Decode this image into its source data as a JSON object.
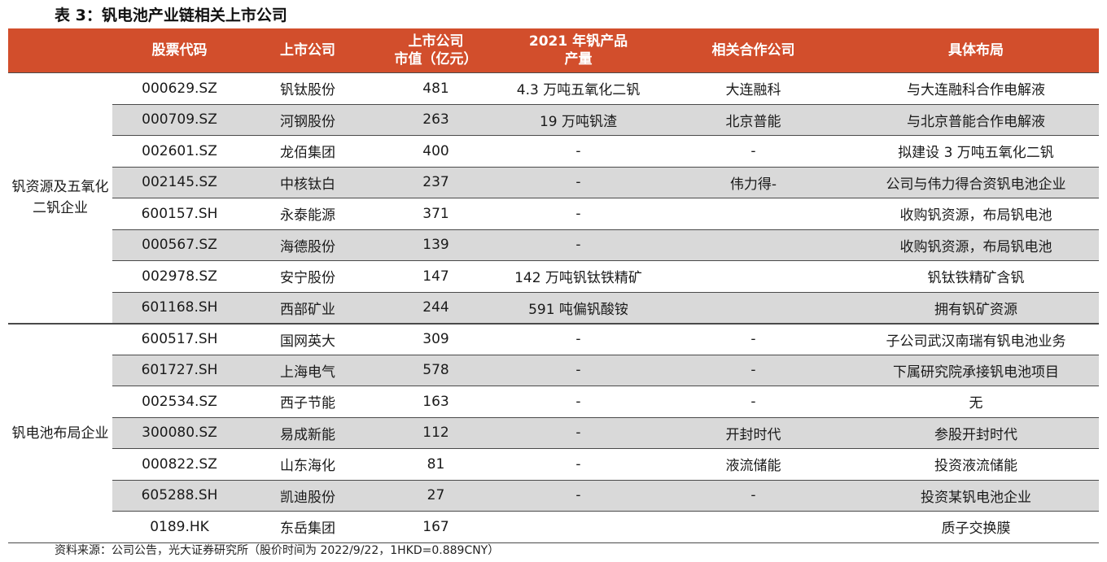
{
  "title": "表 3：钒电池产业链相关上市公司",
  "headers": {
    "group": "",
    "code": "股票代码",
    "company": "上市公司",
    "cap": "上市公司\n市值（亿元）",
    "output": "2021 年钒产品\n产量",
    "partner": "相关合作公司",
    "layout": "具体布局"
  },
  "groups": [
    {
      "label": "钒资源及五氧化二钒企业",
      "rows": [
        {
          "code": "000629.SZ",
          "company": "钒钛股份",
          "cap": "481",
          "output": "4.3 万吨五氧化二钒",
          "partner": "大连融科",
          "layout": "与大连融科合作电解液"
        },
        {
          "code": "000709.SZ",
          "company": "河钢股份",
          "cap": "263",
          "output": "19 万吨钒渣",
          "partner": "北京普能",
          "layout": "与北京普能合作电解液"
        },
        {
          "code": "002601.SZ",
          "company": "龙佰集团",
          "cap": "400",
          "output": "-",
          "partner": "-",
          "layout": "拟建设 3 万吨五氧化二钒"
        },
        {
          "code": "002145.SZ",
          "company": "中核钛白",
          "cap": "237",
          "output": "-",
          "partner": "伟力得-",
          "layout": "公司与伟力得合资钒电池企业"
        },
        {
          "code": "600157.SH",
          "company": "永泰能源",
          "cap": "371",
          "output": "-",
          "partner": "",
          "layout": "收购钒资源，布局钒电池"
        },
        {
          "code": "000567.SZ",
          "company": "海德股份",
          "cap": "139",
          "output": "-",
          "partner": "",
          "layout": "收购钒资源，布局钒电池"
        },
        {
          "code": "002978.SZ",
          "company": "安宁股份",
          "cap": "147",
          "output": "142 万吨钒钛铁精矿",
          "partner": "",
          "layout": "钒钛铁精矿含钒"
        },
        {
          "code": "601168.SH",
          "company": "西部矿业",
          "cap": "244",
          "output": "591 吨偏钒酸铵",
          "partner": "",
          "layout": "拥有钒矿资源"
        }
      ]
    },
    {
      "label": "钒电池布局企业",
      "rows": [
        {
          "code": "600517.SH",
          "company": "国网英大",
          "cap": "309",
          "output": "-",
          "partner": "-",
          "layout": "子公司武汉南瑞有钒电池业务"
        },
        {
          "code": "601727.SH",
          "company": "上海电气",
          "cap": "578",
          "output": "-",
          "partner": "-",
          "layout": "下属研究院承接钒电池项目"
        },
        {
          "code": "002534.SZ",
          "company": "西子节能",
          "cap": "163",
          "output": "-",
          "partner": "-",
          "layout": "无"
        },
        {
          "code": "300080.SZ",
          "company": "易成新能",
          "cap": "112",
          "output": "-",
          "partner": "开封时代",
          "layout": "参股开封时代"
        },
        {
          "code": "000822.SZ",
          "company": "山东海化",
          "cap": "81",
          "output": "-",
          "partner": "液流储能",
          "layout": "投资液流储能"
        },
        {
          "code": "605288.SH",
          "company": "凯迪股份",
          "cap": "27",
          "output": "-",
          "partner": "-",
          "layout": "投资某钒电池企业"
        },
        {
          "code": "0189.HK",
          "company": "东岳集团",
          "cap": "167",
          "output": "",
          "partner": "",
          "layout": "质子交换膜"
        }
      ]
    }
  ],
  "source": "资料来源：公司公告，光大证券研究所（股价时间为 2022/9/22，1HKD=0.889CNY）",
  "colors": {
    "header_bg": "#d24e2c",
    "header_text": "#ffffff",
    "shade": "#d9d9d9"
  }
}
